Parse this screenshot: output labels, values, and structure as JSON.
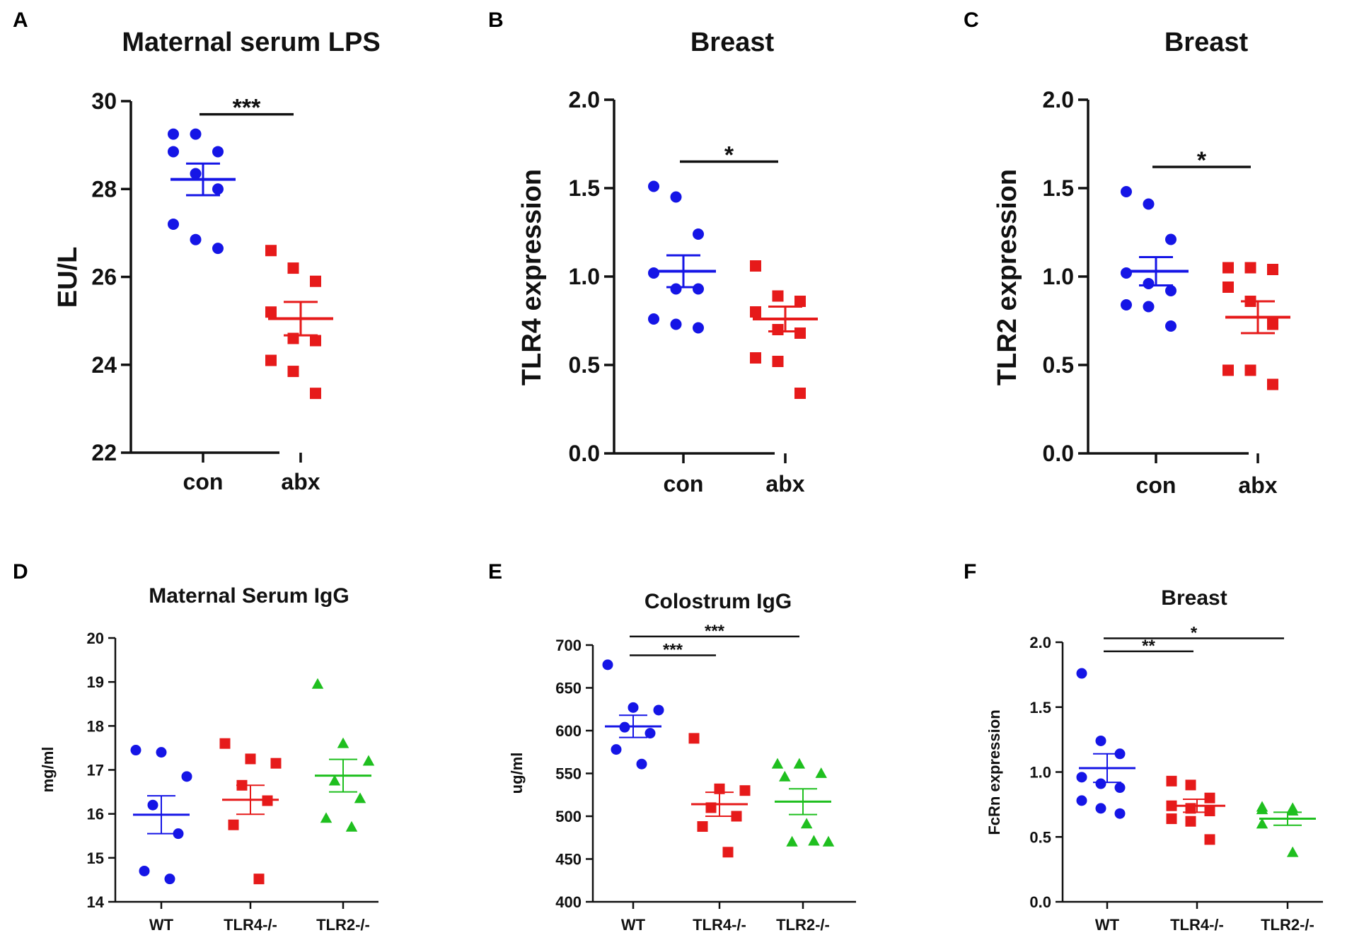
{
  "colors": {
    "blue": "#1515e6",
    "red": "#e61a1a",
    "green": "#1fbf1f",
    "axis": "#111111"
  },
  "chart_data": [
    {
      "id": "A",
      "panel_label": "A",
      "type": "scatter",
      "title": "Maternal serum LPS",
      "xlabel": "",
      "ylabel": "EU/L",
      "ylim": [
        22,
        30
      ],
      "yticks": [
        22,
        24,
        26,
        28,
        30
      ],
      "ytick_labels": [
        "22",
        "24",
        "26",
        "28",
        "30"
      ],
      "categories": [
        "con",
        "abx"
      ],
      "series": [
        {
          "name": "con",
          "color": "blue",
          "marker": "circle",
          "mean": 28.22,
          "sem": 0.36,
          "values": [
            29.25,
            29.25,
            28.85,
            28.85,
            28.35,
            28.0,
            27.2,
            26.85,
            26.65
          ]
        },
        {
          "name": "abx",
          "color": "red",
          "marker": "square",
          "mean": 25.05,
          "sem": 0.38,
          "values": [
            26.6,
            26.2,
            25.9,
            25.2,
            24.6,
            24.55,
            24.1,
            23.85,
            23.35
          ]
        }
      ],
      "significance": [
        {
          "from": 0,
          "to": 1,
          "label": "***",
          "y": 29.7
        }
      ]
    },
    {
      "id": "B",
      "panel_label": "B",
      "type": "scatter",
      "title": "Breast",
      "xlabel": "",
      "ylabel": "TLR4 expression",
      "ylim": [
        0,
        2.0
      ],
      "yticks": [
        0,
        0.5,
        1.0,
        1.5,
        2.0
      ],
      "ytick_labels": [
        "0.0",
        "0.5",
        "1.0",
        "1.5",
        "2.0"
      ],
      "categories": [
        "con",
        "abx"
      ],
      "series": [
        {
          "name": "con",
          "color": "blue",
          "marker": "circle",
          "mean": 1.03,
          "sem": 0.09,
          "values": [
            1.51,
            1.45,
            1.24,
            1.02,
            0.93,
            0.93,
            0.76,
            0.73,
            0.71
          ]
        },
        {
          "name": "abx",
          "color": "red",
          "marker": "square",
          "mean": 0.76,
          "sem": 0.07,
          "values": [
            1.06,
            0.89,
            0.86,
            0.8,
            0.7,
            0.68,
            0.54,
            0.52,
            0.34
          ]
        }
      ],
      "significance": [
        {
          "from": 0,
          "to": 1,
          "label": "*",
          "y": 1.65
        }
      ]
    },
    {
      "id": "C",
      "panel_label": "C",
      "type": "scatter",
      "title": "Breast",
      "xlabel": "",
      "ylabel": "TLR2 expression",
      "ylim": [
        0,
        2.0
      ],
      "yticks": [
        0,
        0.5,
        1.0,
        1.5,
        2.0
      ],
      "ytick_labels": [
        "0.0",
        "0.5",
        "1.0",
        "1.5",
        "2.0"
      ],
      "categories": [
        "con",
        "abx"
      ],
      "series": [
        {
          "name": "con",
          "color": "blue",
          "marker": "circle",
          "mean": 1.03,
          "sem": 0.08,
          "values": [
            1.48,
            1.41,
            1.21,
            1.02,
            0.96,
            0.92,
            0.84,
            0.83,
            0.72
          ]
        },
        {
          "name": "abx",
          "color": "red",
          "marker": "square",
          "mean": 0.77,
          "sem": 0.09,
          "values": [
            1.05,
            1.05,
            1.04,
            0.94,
            0.86,
            0.73,
            0.47,
            0.47,
            0.39
          ]
        }
      ],
      "significance": [
        {
          "from": 0,
          "to": 1,
          "label": "*",
          "y": 1.62
        }
      ]
    },
    {
      "id": "D",
      "panel_label": "D",
      "type": "scatter",
      "title": "Maternal Serum IgG",
      "xlabel": "",
      "ylabel": "mg/ml",
      "ylim": [
        14,
        20
      ],
      "yticks": [
        14,
        15,
        16,
        17,
        18,
        19,
        20
      ],
      "ytick_labels": [
        "14",
        "15",
        "16",
        "17",
        "18",
        "19",
        "20"
      ],
      "categories": [
        "WT",
        "TLR4-/-",
        "TLR2-/-"
      ],
      "series": [
        {
          "name": "WT",
          "color": "blue",
          "marker": "circle",
          "mean": 15.98,
          "sem": 0.43,
          "values": [
            17.45,
            17.4,
            16.85,
            16.2,
            15.55,
            14.7,
            14.52
          ]
        },
        {
          "name": "TLR4-/-",
          "color": "red",
          "marker": "square",
          "mean": 16.32,
          "sem": 0.33,
          "values": [
            17.6,
            17.25,
            17.15,
            16.65,
            16.3,
            15.75,
            14.52
          ]
        },
        {
          "name": "TLR2-/-",
          "color": "green",
          "marker": "triangle",
          "mean": 16.87,
          "sem": 0.37,
          "values": [
            18.95,
            17.6,
            17.2,
            16.75,
            16.35,
            15.9,
            15.7
          ]
        }
      ],
      "significance": []
    },
    {
      "id": "E",
      "panel_label": "E",
      "type": "scatter",
      "title": "Colostrum IgG",
      "xlabel": "",
      "ylabel": "ug/ml",
      "ylim": [
        400,
        700
      ],
      "yticks": [
        400,
        450,
        500,
        550,
        600,
        650,
        700
      ],
      "ytick_labels": [
        "400",
        "450",
        "500",
        "550",
        "600",
        "650",
        "700"
      ],
      "categories": [
        "WT",
        "TLR4-/-",
        "TLR2-/-"
      ],
      "series": [
        {
          "name": "WT",
          "color": "blue",
          "marker": "circle",
          "mean": 605,
          "sem": 13,
          "values": [
            677,
            627,
            624,
            604,
            597,
            578,
            561
          ]
        },
        {
          "name": "TLR4-/-",
          "color": "red",
          "marker": "square",
          "mean": 514,
          "sem": 14,
          "values": [
            591,
            532,
            530,
            510,
            500,
            488,
            458
          ]
        },
        {
          "name": "TLR2-/-",
          "color": "green",
          "marker": "triangle",
          "mean": 517,
          "sem": 15,
          "values": [
            561,
            561,
            550,
            546,
            491,
            470,
            470,
            471
          ]
        }
      ],
      "significance": [
        {
          "from": 0,
          "to": 1,
          "label": "***",
          "y": 688
        },
        {
          "from": 0,
          "to": 2,
          "label": "***",
          "y": 710
        }
      ]
    },
    {
      "id": "F",
      "panel_label": "F",
      "type": "scatter",
      "title": "Breast",
      "xlabel": "",
      "ylabel": "FcRn expression",
      "ylim": [
        0,
        2.0
      ],
      "yticks": [
        0,
        0.5,
        1.0,
        1.5,
        2.0
      ],
      "ytick_labels": [
        "0.0",
        "0.5",
        "1.0",
        "1.5",
        "2.0"
      ],
      "categories": [
        "WT",
        "TLR4-/-",
        "TLR2-/-"
      ],
      "series": [
        {
          "name": "WT",
          "color": "blue",
          "marker": "circle",
          "mean": 1.03,
          "sem": 0.11,
          "values": [
            1.76,
            1.24,
            1.14,
            0.96,
            0.91,
            0.88,
            0.78,
            0.72,
            0.68
          ]
        },
        {
          "name": "TLR4-/-",
          "color": "red",
          "marker": "square",
          "mean": 0.74,
          "sem": 0.05,
          "values": [
            0.93,
            0.9,
            0.8,
            0.74,
            0.72,
            0.7,
            0.64,
            0.62,
            0.48
          ]
        },
        {
          "name": "TLR2-/-",
          "color": "green",
          "marker": "triangle",
          "mean": 0.64,
          "sem": 0.05,
          "values": [
            0.73,
            0.72,
            0.71,
            0.7,
            0.6,
            0.38
          ]
        }
      ],
      "significance": [
        {
          "from": 0,
          "to": 1,
          "label": "**",
          "y": 1.93
        },
        {
          "from": 0,
          "to": 2,
          "label": "*",
          "y": 2.03
        }
      ]
    }
  ]
}
